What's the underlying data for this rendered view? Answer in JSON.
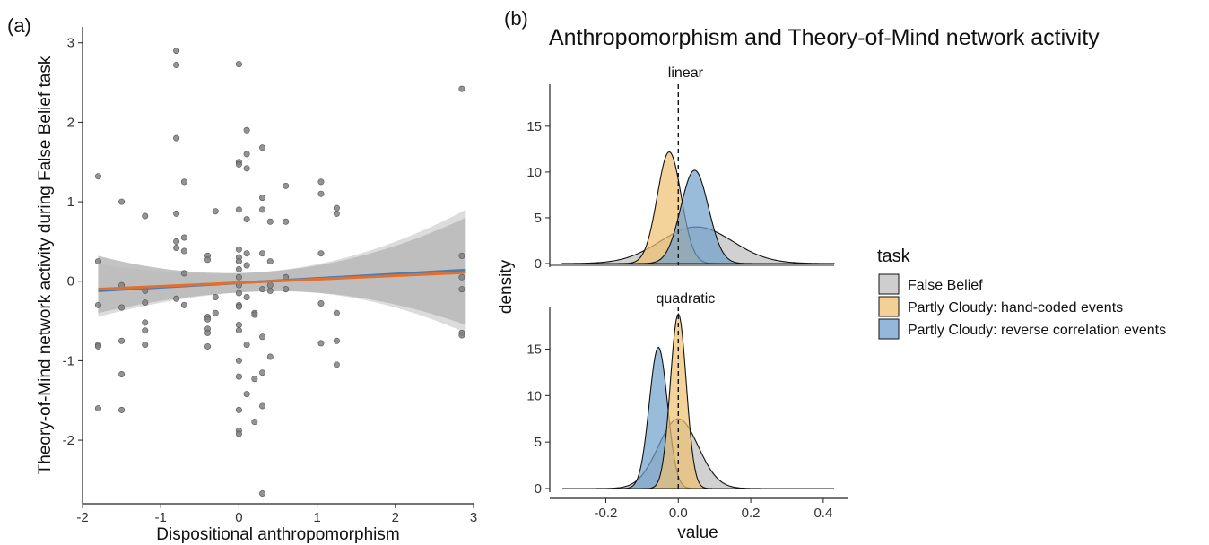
{
  "panel_labels": {
    "a": "(a)",
    "b": "(b)"
  },
  "chart_data": [
    {
      "type": "scatter",
      "xlabel": "Dispositional anthropomorphism",
      "ylabel": "Theory-of-Mind network activity during False Belief task",
      "xlim": [
        -2,
        3
      ],
      "ylim": [
        -2.8,
        3.2
      ],
      "x_ticks": [
        -2,
        -1,
        0,
        1,
        2,
        3
      ],
      "y_ticks": [
        -2,
        -1,
        0,
        1,
        2,
        3
      ],
      "grid": false,
      "point_color": "#808080",
      "points": [
        [
          -1.8,
          1.32
        ],
        [
          -1.8,
          0.25
        ],
        [
          -1.8,
          -0.3
        ],
        [
          -1.8,
          -0.8
        ],
        [
          -1.8,
          -0.82
        ],
        [
          -1.8,
          -1.6
        ],
        [
          -1.5,
          1.0
        ],
        [
          -1.5,
          -0.05
        ],
        [
          -1.5,
          -0.33
        ],
        [
          -1.5,
          -0.75
        ],
        [
          -1.5,
          -1.17
        ],
        [
          -1.5,
          -1.62
        ],
        [
          -1.2,
          0.82
        ],
        [
          -1.2,
          -0.12
        ],
        [
          -1.2,
          -0.52
        ],
        [
          -1.2,
          -0.62
        ],
        [
          -1.2,
          -0.8
        ],
        [
          -1.2,
          -0.27
        ],
        [
          -0.8,
          2.9
        ],
        [
          -0.8,
          2.72
        ],
        [
          -0.8,
          1.8
        ],
        [
          -0.8,
          0.85
        ],
        [
          -0.8,
          0.5
        ],
        [
          -0.8,
          0.42
        ],
        [
          -0.8,
          -0.22
        ],
        [
          -0.7,
          1.25
        ],
        [
          -0.7,
          0.55
        ],
        [
          -0.7,
          0.38
        ],
        [
          -0.7,
          0.1
        ],
        [
          -0.7,
          -0.3
        ],
        [
          -0.4,
          0.32
        ],
        [
          -0.4,
          0.27
        ],
        [
          -0.4,
          -0.45
        ],
        [
          -0.4,
          -0.48
        ],
        [
          -0.4,
          -0.6
        ],
        [
          -0.4,
          -0.65
        ],
        [
          -0.4,
          -0.82
        ],
        [
          -0.3,
          0.88
        ],
        [
          -0.3,
          -0.2
        ],
        [
          -0.3,
          -0.4
        ],
        [
          0.0,
          2.73
        ],
        [
          0.0,
          1.5
        ],
        [
          0.0,
          1.47
        ],
        [
          0.0,
          0.9
        ],
        [
          0.0,
          0.4
        ],
        [
          0.0,
          0.3
        ],
        [
          0.0,
          0.25
        ],
        [
          0.0,
          0.15
        ],
        [
          0.0,
          0.05
        ],
        [
          0.0,
          -0.05
        ],
        [
          0.0,
          -0.15
        ],
        [
          0.0,
          -0.3
        ],
        [
          0.0,
          -0.32
        ],
        [
          0.0,
          -0.55
        ],
        [
          0.0,
          -0.62
        ],
        [
          0.0,
          -1.0
        ],
        [
          0.0,
          -1.2
        ],
        [
          0.0,
          -1.62
        ],
        [
          0.0,
          -1.88
        ],
        [
          0.0,
          -1.92
        ],
        [
          0.1,
          1.9
        ],
        [
          0.1,
          1.6
        ],
        [
          0.1,
          1.42
        ],
        [
          0.1,
          0.78
        ],
        [
          0.1,
          0.35
        ],
        [
          0.1,
          0.2
        ],
        [
          0.1,
          -0.2
        ],
        [
          0.1,
          -0.8
        ],
        [
          0.1,
          -1.42
        ],
        [
          0.2,
          -0.4
        ],
        [
          0.2,
          -0.42
        ],
        [
          0.2,
          -1.23
        ],
        [
          0.2,
          -1.77
        ],
        [
          0.3,
          1.68
        ],
        [
          0.3,
          1.05
        ],
        [
          0.3,
          0.9
        ],
        [
          0.3,
          0.35
        ],
        [
          0.3,
          -0.1
        ],
        [
          0.3,
          -0.7
        ],
        [
          0.3,
          -1.15
        ],
        [
          0.3,
          -1.57
        ],
        [
          0.3,
          -2.67
        ],
        [
          0.4,
          0.75
        ],
        [
          0.4,
          0.25
        ],
        [
          0.4,
          -0.05
        ],
        [
          0.4,
          -0.12
        ],
        [
          0.4,
          -0.95
        ],
        [
          0.6,
          1.2
        ],
        [
          0.6,
          0.75
        ],
        [
          0.6,
          0.05
        ],
        [
          0.6,
          -0.1
        ],
        [
          1.05,
          1.25
        ],
        [
          1.05,
          1.1
        ],
        [
          1.05,
          0.35
        ],
        [
          1.05,
          -0.28
        ],
        [
          1.05,
          -0.78
        ],
        [
          1.25,
          0.92
        ],
        [
          1.25,
          0.85
        ],
        [
          1.25,
          -0.4
        ],
        [
          1.25,
          -0.75
        ],
        [
          1.25,
          -1.05
        ],
        [
          2.85,
          2.42
        ],
        [
          2.85,
          0.32
        ],
        [
          2.85,
          0.05
        ],
        [
          2.85,
          -0.1
        ],
        [
          2.85,
          -0.65
        ],
        [
          2.85,
          -0.68
        ]
      ],
      "fits": [
        {
          "color": "#4a7bb0",
          "x": [
            -1.8,
            2.9
          ],
          "y": [
            -0.12,
            0.14
          ],
          "band_lower": [
            -0.45,
            -0.65
          ],
          "band_upper": [
            0.22,
            0.9
          ],
          "band_color": "#dcdcdc"
        },
        {
          "color": "#e07030",
          "x": [
            -1.8,
            2.9
          ],
          "y": [
            -0.1,
            0.11
          ],
          "band_lower": [
            -0.4,
            -0.55
          ],
          "band_upper": [
            0.32,
            0.8
          ],
          "band_color": "#b8b8b8"
        }
      ]
    },
    {
      "type": "area",
      "title": "Anthropomorphism and Theory-of-Mind network activity",
      "xlabel": "value",
      "ylabel": "density",
      "xlim": [
        -0.32,
        0.43
      ],
      "ylim": [
        0,
        19
      ],
      "x_ticks": [
        -0.2,
        0.0,
        0.2,
        0.4
      ],
      "x_tick_labels": [
        "-0.2",
        "0.0",
        "0.2",
        "0.4"
      ],
      "y_ticks": [
        0,
        5,
        10,
        15
      ],
      "reference_line_x": 0,
      "legend": {
        "title": "task",
        "placement": "right",
        "entries": [
          {
            "label": "False Belief",
            "color": "#bdbdbd"
          },
          {
            "label": "Partly Cloudy: hand-coded events",
            "color": "#f0c070"
          },
          {
            "label": "Partly Cloudy: reverse correlation events",
            "color": "#6fa0cc"
          }
        ]
      },
      "facets": [
        {
          "label": "linear",
          "series": [
            {
              "color": "#bdbdbd",
              "mean": 0.05,
              "sd": 0.1,
              "peak": 4.0
            },
            {
              "color": "#f0c070",
              "mean": -0.025,
              "sd": 0.033,
              "peak": 12.2
            },
            {
              "color": "#6fa0cc",
              "mean": 0.045,
              "sd": 0.038,
              "peak": 10.2
            }
          ]
        },
        {
          "label": "quadratic",
          "series": [
            {
              "color": "#bdbdbd",
              "mean": 0.0,
              "sd": 0.055,
              "peak": 7.5
            },
            {
              "color": "#6fa0cc",
              "mean": -0.055,
              "sd": 0.025,
              "peak": 15.2
            },
            {
              "color": "#f0c070",
              "mean": 0.0,
              "sd": 0.022,
              "peak": 18.8
            }
          ]
        }
      ]
    }
  ]
}
